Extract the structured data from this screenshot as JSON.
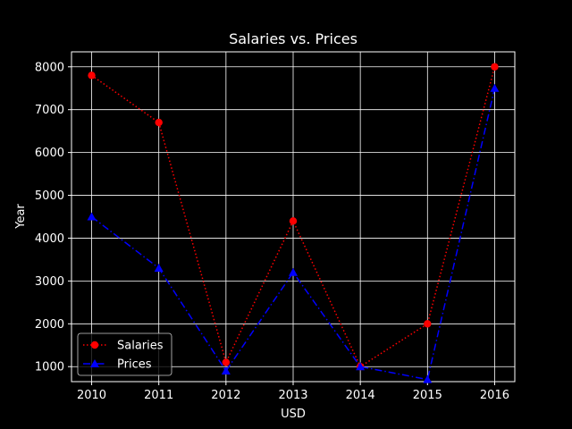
{
  "chart_data": {
    "type": "line",
    "title": "Salaries vs. Prices",
    "xlabel": "USD",
    "ylabel": "Year",
    "x": [
      2010,
      2011,
      2012,
      2013,
      2014,
      2015,
      2016
    ],
    "xticks": [
      "2010",
      "2011",
      "2012",
      "2013",
      "2014",
      "2015",
      "2016"
    ],
    "yticks": [
      "1000",
      "2000",
      "3000",
      "4000",
      "5000",
      "6000",
      "7000",
      "8000"
    ],
    "xlim": [
      2009.7,
      2016.3
    ],
    "ylim": [
      650,
      8350
    ],
    "grid": true,
    "legend_position": "lower-left",
    "series": [
      {
        "name": "Salaries",
        "values": [
          7800,
          6700,
          1100,
          4400,
          1000,
          2000,
          8000
        ],
        "color": "#ff0000",
        "line_style": "dotted",
        "marker": "circle"
      },
      {
        "name": "Prices",
        "values": [
          4500,
          3300,
          900,
          3200,
          1000,
          700,
          7500
        ],
        "color": "#0000ff",
        "line_style": "dashdot",
        "marker": "triangle"
      }
    ]
  }
}
